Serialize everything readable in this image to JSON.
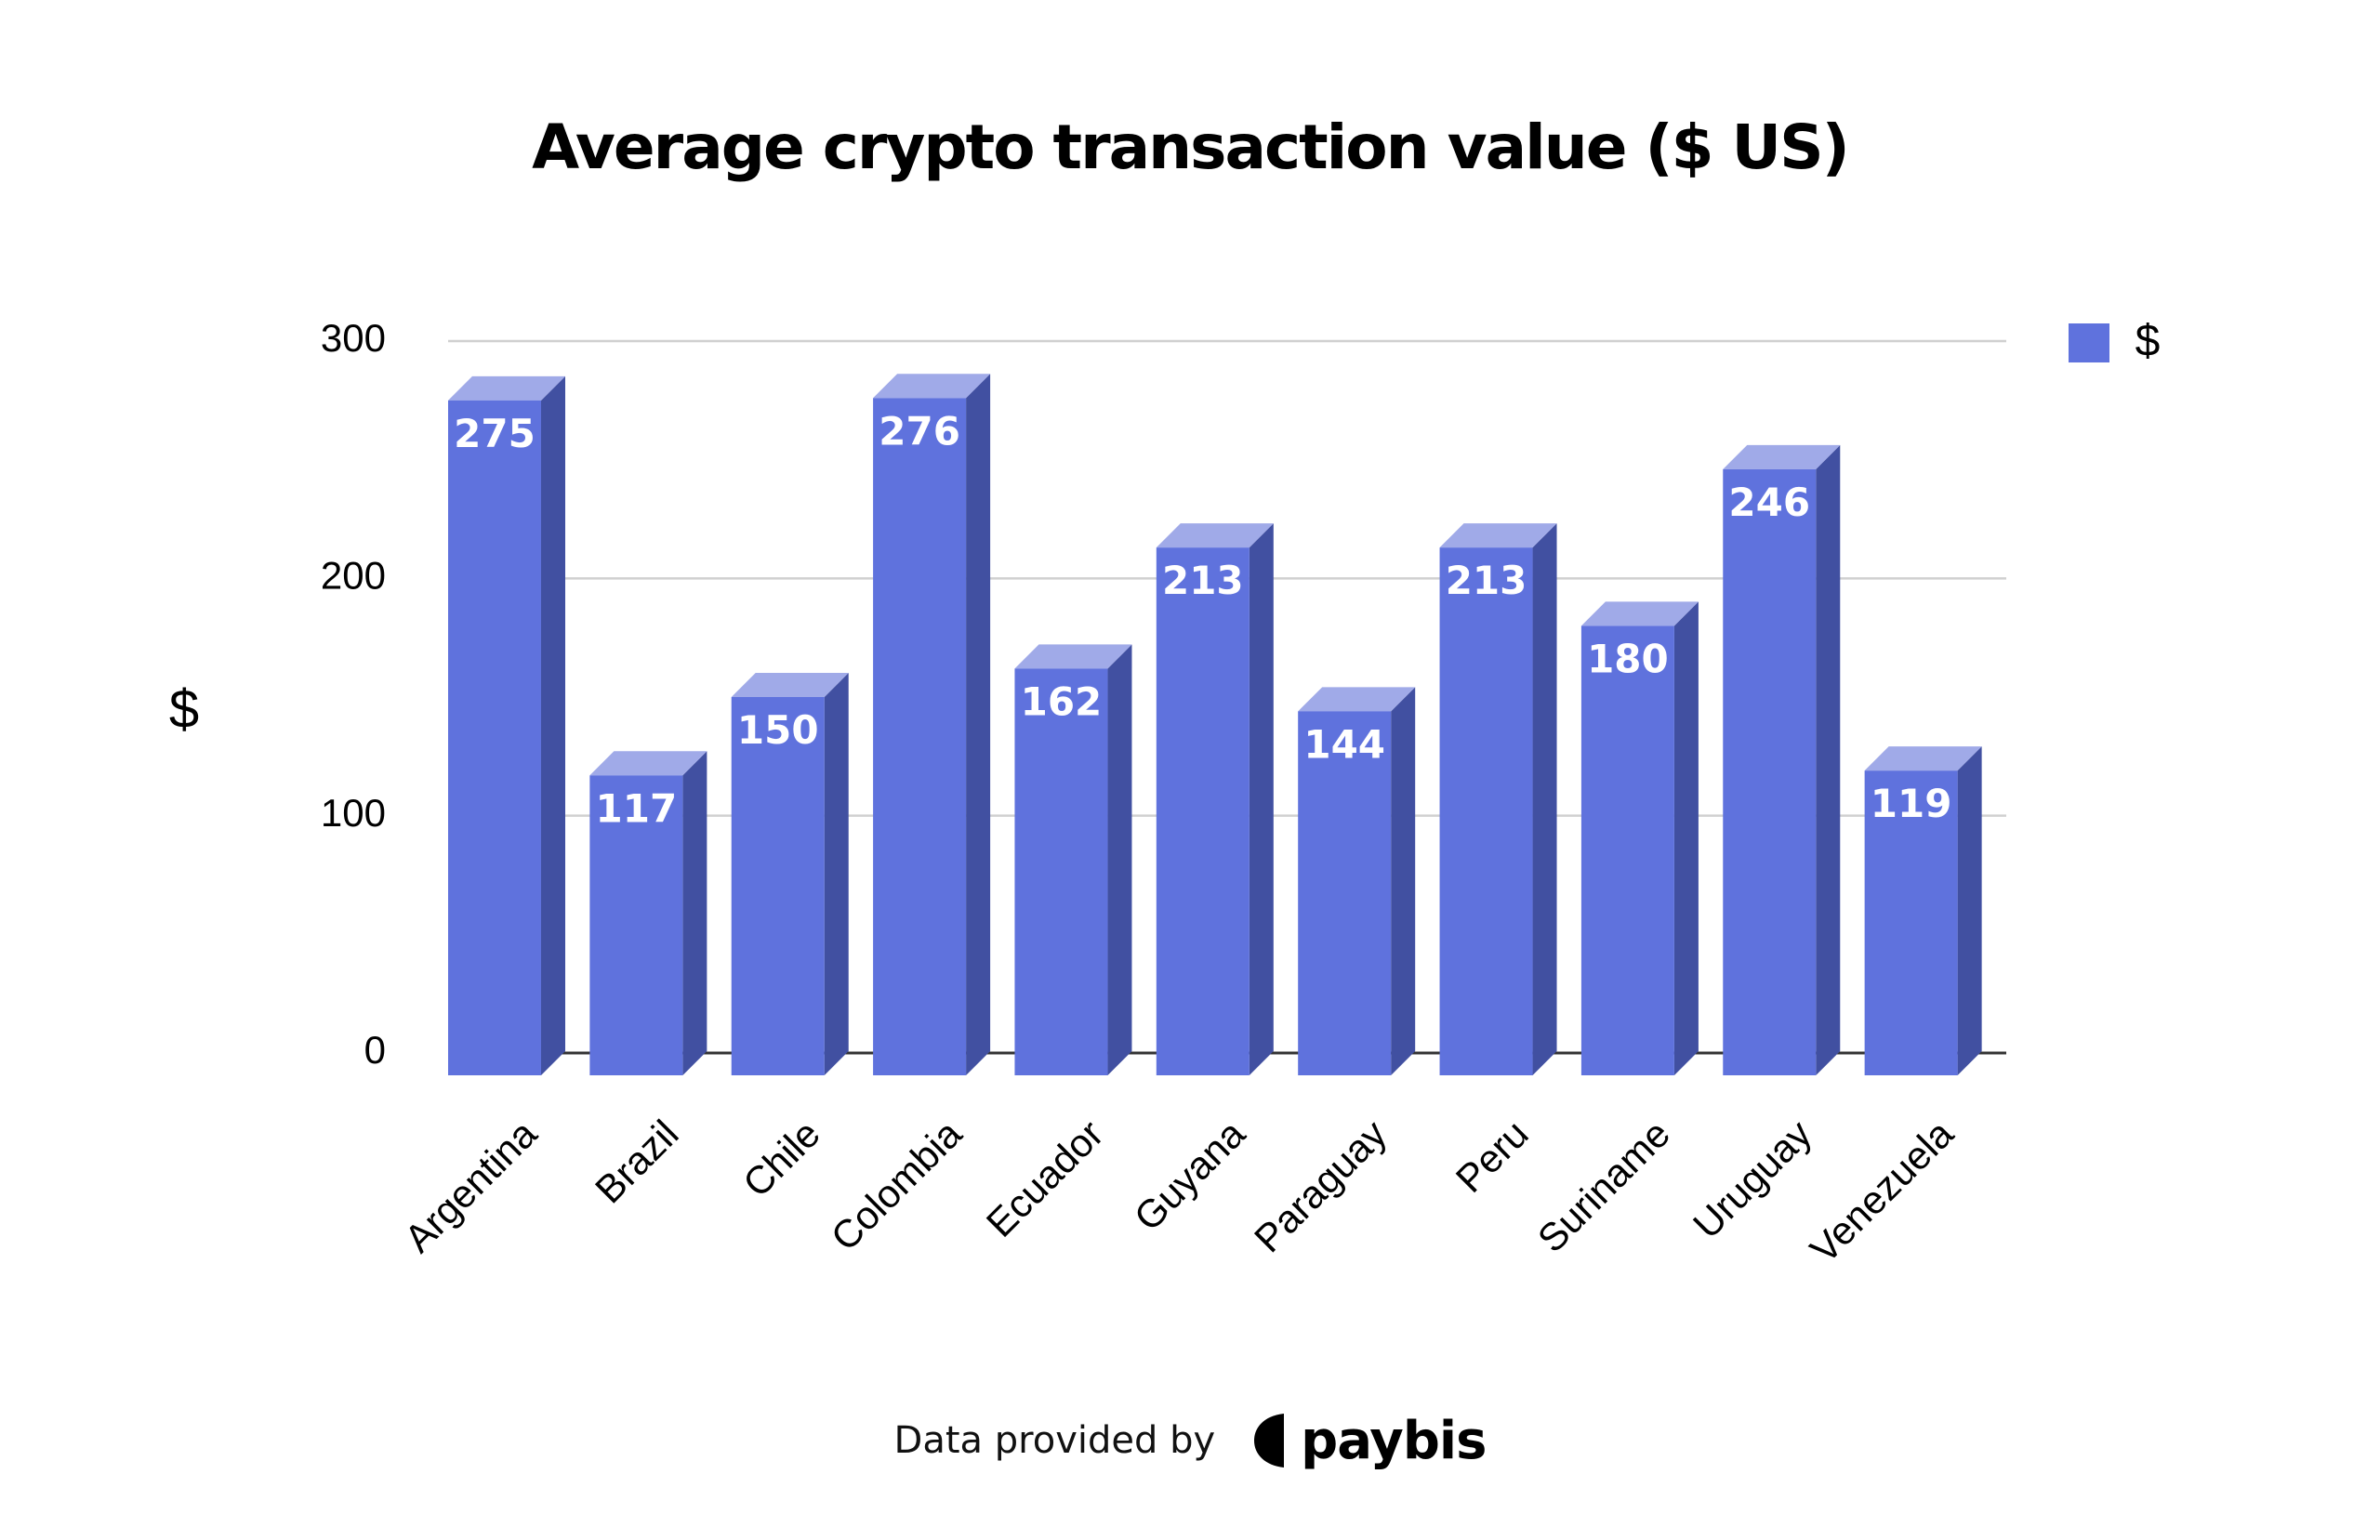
{
  "chart_data": {
    "type": "bar",
    "title": "Average crypto transaction value ($ US)",
    "xlabel": "",
    "ylabel": "$",
    "categories": [
      "Argentina",
      "Brazil",
      "Chile",
      "Colombia",
      "Ecuador",
      "Guyana",
      "Paraguay",
      "Peru",
      "Suriname",
      "Uruguay",
      "Venezuela"
    ],
    "series": [
      {
        "name": "$",
        "values": [
          275,
          117,
          150,
          276,
          162,
          213,
          144,
          213,
          180,
          246,
          119
        ],
        "color": "#5f72dd"
      }
    ],
    "ylim": [
      0,
      300
    ],
    "yticks": [
      "0",
      "100",
      "200",
      "300"
    ],
    "grid": true,
    "legend": "top-right",
    "data_labels": true,
    "style": "3d-columns",
    "colors": {
      "front": "#5f72dd",
      "side": "#4150a1",
      "top": "#a0aae8",
      "grid": "#d0d0d0",
      "axis": "#333333"
    }
  },
  "footer": {
    "text": "Data provided by",
    "brand_name": "paybis",
    "brand_icon": "paybis-logo-icon"
  }
}
